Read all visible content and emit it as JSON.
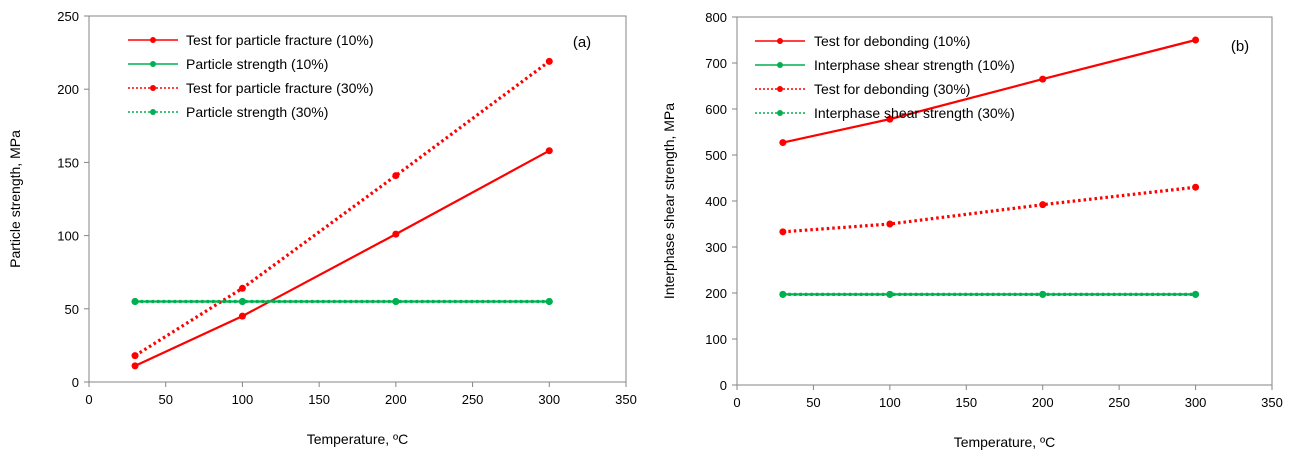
{
  "colors": {
    "red": "#ff0000",
    "green": "#00b050",
    "axis": "#868686"
  },
  "chart_data": [
    {
      "type": "line",
      "title": "",
      "panel_label": "(a)",
      "xlabel": "Temperature, ºC",
      "ylabel": "Particle strength, MPa",
      "xlim": [
        0,
        350
      ],
      "ylim": [
        0,
        250
      ],
      "xticks": [
        0,
        50,
        100,
        150,
        200,
        250,
        300,
        350
      ],
      "yticks": [
        0,
        50,
        100,
        150,
        200,
        250
      ],
      "grid": false,
      "legend": "top-left",
      "x": [
        30,
        100,
        200,
        300
      ],
      "series": [
        {
          "name": "Test for particle fracture (10%)",
          "values": [
            11,
            45,
            101,
            158
          ],
          "color": "#ff0000",
          "dash": "solid"
        },
        {
          "name": "Particle strength (10%)",
          "values": [
            55,
            55,
            55,
            55
          ],
          "color": "#00b050",
          "dash": "solid"
        },
        {
          "name": "Test for particle fracture (30%)",
          "values": [
            18,
            64,
            141,
            219
          ],
          "color": "#ff0000",
          "dash": "dotted"
        },
        {
          "name": "Particle strength (30%)",
          "values": [
            55,
            55,
            55,
            55
          ],
          "color": "#00b050",
          "dash": "dotted"
        }
      ]
    },
    {
      "type": "line",
      "title": "",
      "panel_label": "(b)",
      "xlabel": "Temperature, ºC",
      "ylabel": "Interphase shear strength, MPa",
      "xlim": [
        0,
        350
      ],
      "ylim": [
        0,
        800
      ],
      "xticks": [
        0,
        50,
        100,
        150,
        200,
        250,
        300,
        350
      ],
      "yticks": [
        0,
        100,
        200,
        300,
        400,
        500,
        600,
        700,
        800
      ],
      "grid": false,
      "legend": "top-left",
      "x": [
        30,
        100,
        200,
        300
      ],
      "series": [
        {
          "name": "Test for debonding (10%)",
          "values": [
            527,
            578,
            665,
            750
          ],
          "color": "#ff0000",
          "dash": "solid"
        },
        {
          "name": "Interphase shear strength (10%)",
          "values": [
            197,
            197,
            197,
            197
          ],
          "color": "#00b050",
          "dash": "solid"
        },
        {
          "name": "Test for debonding (30%)",
          "values": [
            333,
            350,
            392,
            430
          ],
          "color": "#ff0000",
          "dash": "dotted"
        },
        {
          "name": "Interphase shear strength (30%)",
          "values": [
            197,
            197,
            197,
            197
          ],
          "color": "#00b050",
          "dash": "dotted"
        }
      ]
    }
  ]
}
